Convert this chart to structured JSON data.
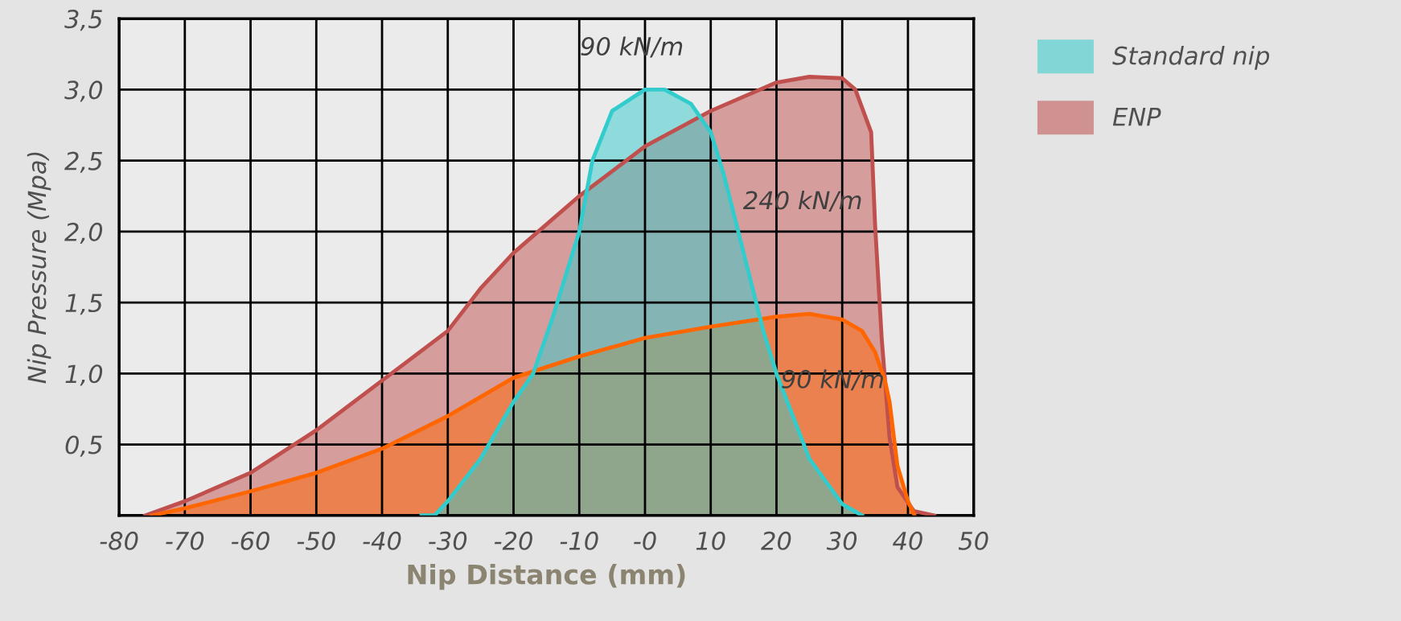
{
  "chart_data": {
    "type": "area",
    "xlabel": "Nip Distance (mm)",
    "ylabel": "Nip Pressure (Mpa)",
    "xlim": [
      -80,
      50
    ],
    "ylim": [
      0,
      3.5
    ],
    "xticks": [
      -80,
      -70,
      -60,
      -50,
      -40,
      -30,
      -20,
      -10,
      {
        "value": 0,
        "label": "-0"
      },
      10,
      20,
      30,
      40,
      50
    ],
    "yticks": [
      {
        "value": 0,
        "label": null
      },
      {
        "value": 0.5,
        "label": "0,5"
      },
      {
        "value": 1.0,
        "label": "1,0"
      },
      {
        "value": 1.5,
        "label": "1,5"
      },
      {
        "value": 2.0,
        "label": "2,0"
      },
      {
        "value": 2.5,
        "label": "2,5"
      },
      {
        "value": 3.0,
        "label": "3,0"
      },
      {
        "value": 3.5,
        "label": "3,5"
      }
    ],
    "grid": true,
    "legend": "top right",
    "marker": "none",
    "line_style": "solid",
    "series": [
      {
        "name": "ENP",
        "color": "#c0504d",
        "x": [
          -76,
          -70,
          -60,
          -50,
          -40,
          -30,
          -25,
          -20,
          -10,
          0,
          10,
          20,
          25,
          30,
          32,
          34.4,
          35,
          36,
          37.2,
          38.4,
          40.9,
          44
        ],
        "values": [
          0,
          0.1,
          0.3,
          0.6,
          0.95,
          1.3,
          1.6,
          1.85,
          2.25,
          2.6,
          2.85,
          3.05,
          3.09,
          3.08,
          3.0,
          2.7,
          2.05,
          1.25,
          0.55,
          0.2,
          0.03,
          0
        ]
      },
      {
        "color": "#ff6600",
        "x": [
          -75,
          -70,
          -60,
          -50,
          -40,
          -30,
          -20,
          -10,
          0,
          10,
          20,
          25,
          30,
          33,
          35,
          36.5,
          37.2,
          38.4,
          40,
          41
        ],
        "values": [
          0,
          0.05,
          0.17,
          0.3,
          0.47,
          0.7,
          0.97,
          1.12,
          1.25,
          1.33,
          1.4,
          1.42,
          1.38,
          1.3,
          1.15,
          0.95,
          0.8,
          0.35,
          0.1,
          0
        ]
      },
      {
        "name": "Standard nip",
        "color": "#33cccc",
        "x": [
          -34,
          -32,
          -30,
          -25,
          -20,
          -17,
          -14,
          -10,
          -8,
          -5,
          0,
          3,
          7,
          10,
          12,
          15,
          18,
          20,
          25,
          30,
          33
        ],
        "values": [
          0,
          0.0,
          0.1,
          0.4,
          0.8,
          1.0,
          1.4,
          2.0,
          2.5,
          2.85,
          3.0,
          3.0,
          2.9,
          2.7,
          2.4,
          1.85,
          1.3,
          1.0,
          0.4,
          0.08,
          0
        ]
      }
    ],
    "annotations": [
      "90 kN/m",
      "240 kN/m",
      "90 kN/m"
    ]
  }
}
